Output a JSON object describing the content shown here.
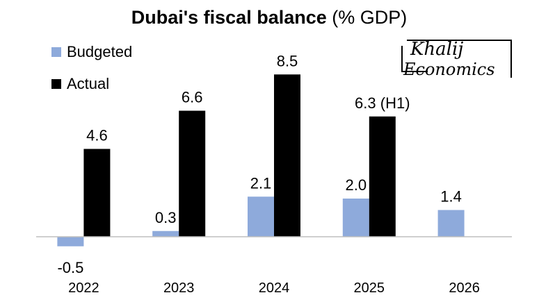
{
  "chart_data": {
    "type": "bar",
    "title_bold": "Dubai's fiscal balance",
    "title_rest": " (% GDP)",
    "categories": [
      "2022",
      "2023",
      "2024",
      "2025",
      "2026"
    ],
    "series": [
      {
        "name": "Budgeted",
        "color": "#8eaadb",
        "values": [
          -0.5,
          0.3,
          2.1,
          2.0,
          1.4
        ],
        "labels": [
          "-0.5",
          "0.3",
          "2.1",
          "2.0",
          "1.4"
        ]
      },
      {
        "name": "Actual",
        "color": "#000000",
        "values": [
          4.6,
          6.6,
          8.5,
          6.3,
          null
        ],
        "labels": [
          "4.6",
          "6.6",
          "8.5",
          "6.3 (H1)",
          ""
        ]
      }
    ],
    "ylim": [
      -0.8,
      9.2
    ],
    "grid": false,
    "legend_position": "top-left"
  },
  "logo": {
    "line1": "Khalij",
    "line2": "Economics"
  }
}
